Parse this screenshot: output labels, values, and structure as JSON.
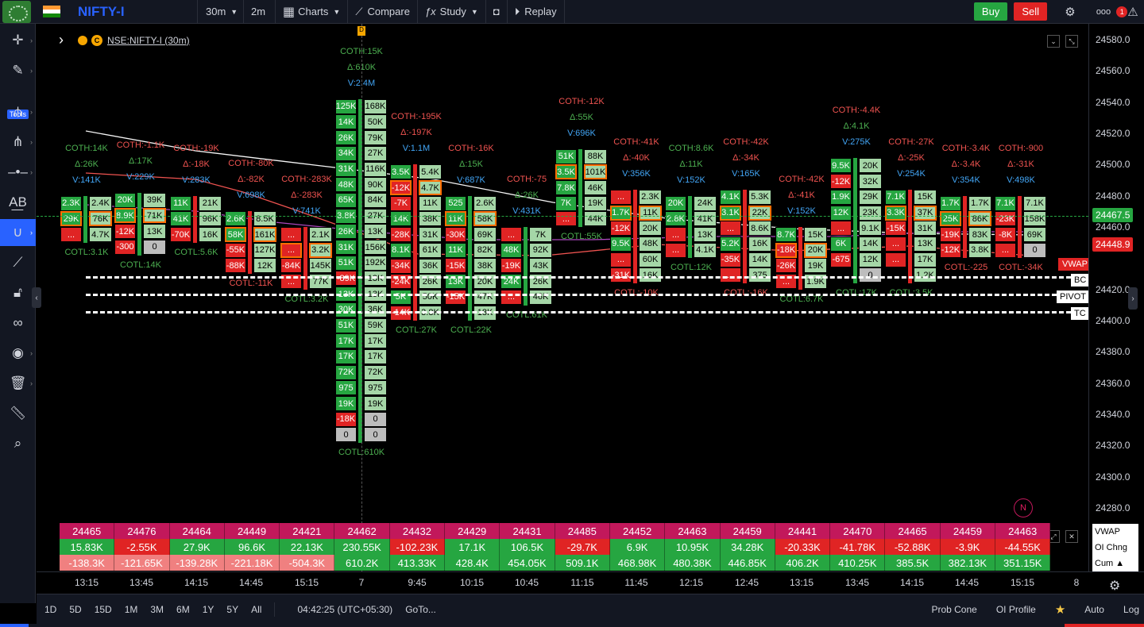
{
  "topbar": {
    "symbol": "NIFTY-I",
    "interval": "30m",
    "interval2": "2m",
    "charts_label": "Charts",
    "compare_label": "Compare",
    "study_label": "Study",
    "replay_label": "Replay",
    "buy_label": "Buy",
    "sell_label": "Sell",
    "more_label": "ooo",
    "alert_count": "1",
    "colors": {
      "buy": "#26a641",
      "sell": "#e02424",
      "symbol": "#2962ff"
    }
  },
  "leftbar": {
    "tools_label": "Tools"
  },
  "legend": {
    "symbol_text": "NSE:NIFTY-I (30m)",
    "coin_label": "C",
    "marker": "D"
  },
  "chart_data": {
    "type": "table",
    "price_axis": [
      "24580.0",
      "24560.0",
      "24540.0",
      "24520.0",
      "24500.0",
      "24480.0",
      "24460.0",
      "24420.0",
      "24400.0",
      "24380.0",
      "24360.0",
      "24340.0",
      "24320.0",
      "24300.0",
      "24280.0"
    ],
    "price_tags": {
      "last": "24467.5",
      "vwap": "24448.9"
    },
    "time_axis": [
      "13:15",
      "13:45",
      "14:15",
      "14:45",
      "15:15",
      "7",
      "9:45",
      "10:15",
      "10:45",
      "11:15",
      "11:45",
      "12:15",
      "12:45",
      "13:15",
      "13:45",
      "14:15",
      "14:45",
      "15:15",
      "8"
    ],
    "pivot_labels": {
      "vwap": "VWAP",
      "bc": "BC",
      "pivot": "PIVOT",
      "tc": "TC"
    },
    "top_annotations": [
      {
        "c": "COTH:14K",
        "d": "Δ:26K",
        "v": "V:141K"
      },
      {
        "c": "COTH:-1.1K",
        "d": "Δ:17K",
        "v": "V:229K"
      },
      {
        "c": "COTH:-19K",
        "d": "Δ:-18K",
        "v": "V:283K"
      },
      {
        "c": "COTH:-80K",
        "d": "Δ:-82K",
        "v": "V:698K"
      },
      {
        "c": "COTH:-283K",
        "d": "Δ:-283K",
        "v": "V:741K"
      },
      {
        "c": "COTH:15K",
        "d": "Δ:610K",
        "v": "V:2.4M"
      },
      {
        "c": "COTH:-195K",
        "d": "Δ:-197K",
        "v": "V:1.1M"
      },
      {
        "c": "COTH:-16K",
        "d": "Δ:15K",
        "v": "V:687K"
      },
      {
        "c": "COTH:-75",
        "d": "Δ:26K",
        "v": "V:431K"
      },
      {
        "c": "COTH:-12K",
        "d": "Δ:55K",
        "v": "V:696K"
      },
      {
        "c": "COTH:-41K",
        "d": "Δ:-40K",
        "v": "V:356K"
      },
      {
        "c": "COTH:8.6K",
        "d": "Δ:11K",
        "v": "V:152K"
      },
      {
        "c": "COTH:-42K",
        "d": "Δ:-34K",
        "v": "V:165K"
      },
      {
        "c": "COTH:-42K",
        "d": "Δ:-41K",
        "v": "V:152K"
      },
      {
        "c": "COTH:-4.4K",
        "d": "Δ:4.1K",
        "v": "V:275K"
      },
      {
        "c": "COTH:-27K",
        "d": "Δ:-25K",
        "v": "V:254K"
      },
      {
        "c": "COTH:-3.4K",
        "d": "Δ:-3.4K",
        "v": "V:354K"
      },
      {
        "c": "COTH:-900",
        "d": "Δ:-31K",
        "v": "V:498K"
      }
    ],
    "bottom_annotations": [
      "COTL:3.1K",
      "COTL:14K",
      "COTL:5.6K",
      "COTL:-11K",
      "COTL:3.2K",
      "COTL:610K",
      "COTL:27K",
      "COTL:22K",
      "COTL:61K",
      "COTL:55K",
      "COTL:-10K",
      "COTL:12K",
      "COTL:-16K",
      "COTL:6.7K",
      "COTL:17K",
      "COTL:3.5K",
      "COTL:-225",
      "COTL:-34K"
    ],
    "summary_rows": {
      "vwap": [
        "24465",
        "24476",
        "24464",
        "24449",
        "24421",
        "24462",
        "24432",
        "24429",
        "24431",
        "24485",
        "24452",
        "24463",
        "24459",
        "24441",
        "24470",
        "24465",
        "24459",
        "24463"
      ],
      "oi_change": [
        "15.83K",
        "-2.55K",
        "27.9K",
        "96.6K",
        "22.13K",
        "230.55K",
        "-102.23K",
        "17.1K",
        "106.5K",
        "-29.7K",
        "6.9K",
        "10.95K",
        "34.28K",
        "-20.33K",
        "-41.78K",
        "-52.88K",
        "-3.9K",
        "-44.55K"
      ],
      "cumulative": [
        "-138.3K",
        "-121.65K",
        "-139.28K",
        "-221.18K",
        "-504.3K",
        "610.2K",
        "413.33K",
        "428.4K",
        "454.05K",
        "509.1K",
        "468.98K",
        "480.38K",
        "446.85K",
        "406.2K",
        "410.25K",
        "385.5K",
        "382.13K",
        "351.15K"
      ]
    },
    "summary_labels": {
      "vwap": "VWAP",
      "oi": "OI Chng",
      "cum": "Cum ▲"
    }
  },
  "footprint": [
    {
      "l": [
        "2.3K",
        "29K",
        "..."
      ],
      "r": [
        "2.4K",
        "76K",
        "4.7K"
      ]
    },
    {
      "l": [
        "20K",
        "8.9K",
        "-12K",
        "-300"
      ],
      "r": [
        "39K",
        "71K",
        "13K",
        "0"
      ]
    },
    {
      "l": [
        "11K",
        "41K",
        "-70K"
      ],
      "r": [
        "21K",
        "96K",
        "16K"
      ]
    },
    {
      "l": [
        "2.6K",
        "58K",
        "-55K",
        "-88K"
      ],
      "r": [
        "8.5K",
        "161K",
        "127K",
        "12K"
      ]
    },
    {
      "l": [
        "...",
        "...",
        "-84K",
        "..."
      ],
      "r": [
        "2.1K",
        "3.2K",
        "145K",
        "77K"
      ]
    },
    {
      "l": [
        "125K",
        "14K",
        "26K",
        "34K",
        "31K",
        "48K",
        "65K",
        "3.8K",
        "26K",
        "31K",
        "51K",
        "-89K",
        "13K",
        "30K",
        "51K",
        "17K",
        "17K",
        "72K",
        "975",
        "19K",
        "-18K",
        "0"
      ],
      "r": [
        "168K",
        "50K",
        "79K",
        "27K",
        "116K",
        "90K",
        "84K",
        "27K",
        "13K",
        "156K",
        "192K",
        "13K",
        "13K",
        "36K",
        "59K",
        "17K",
        "17K",
        "72K",
        "975",
        "19K",
        "0",
        "0"
      ]
    },
    {
      "l": [
        "3.5K",
        "-12K",
        "-7K",
        "14K",
        "-28K",
        "8.1K",
        "-34K",
        "-24K",
        "5K",
        "-14K"
      ],
      "r": [
        "5.4K",
        "4.7K",
        "11K",
        "38K",
        "31K",
        "61K",
        "36K",
        "26K",
        "50K",
        "3.8K"
      ]
    },
    {
      "l": [
        "525",
        "11K",
        "-30K",
        "11K",
        "-15K",
        "13K",
        "-15K"
      ],
      "r": [
        "2.6K",
        "58K",
        "69K",
        "82K",
        "38K",
        "20K",
        "47K",
        "18K"
      ]
    },
    {
      "l": [
        "...",
        "48K",
        "-19K",
        "24K",
        "..."
      ],
      "r": [
        "7K",
        "92K",
        "43K",
        "26K",
        "46K"
      ]
    },
    {
      "l": [
        "51K",
        "3.5K",
        "7.8K",
        "7K",
        "..."
      ],
      "r": [
        "88K",
        "101K",
        "46K",
        "19K",
        "44K"
      ]
    },
    {
      "l": [
        "...",
        "1.7K",
        "-12K",
        "9.5K",
        "...",
        "-31K"
      ],
      "r": [
        "2.3K",
        "11K",
        "20K",
        "48K",
        "60K",
        "16K"
      ]
    },
    {
      "l": [
        "20K",
        "2.8K",
        "...",
        "..."
      ],
      "r": [
        "24K",
        "41K",
        "13K",
        "4.1K"
      ]
    },
    {
      "l": [
        "4.1K",
        "3.1K",
        "...",
        "5.2K",
        "-35K",
        "..."
      ],
      "r": [
        "5.3K",
        "22K",
        "8.6K",
        "16K",
        "14K",
        "375"
      ]
    },
    {
      "l": [
        "8.7K",
        "-18K",
        "-26K",
        "..."
      ],
      "r": [
        "15K",
        "20K",
        "19K",
        "1.9K"
      ]
    },
    {
      "l": [
        "9.5K",
        "-12K",
        "1.9K",
        "12K",
        "...",
        "6K",
        "-675"
      ],
      "r": [
        "20K",
        "32K",
        "29K",
        "23K",
        "9.1K",
        "14K",
        "12K",
        "0"
      ]
    },
    {
      "l": [
        "7.1K",
        "3.3K",
        "-15K",
        "...",
        "..."
      ],
      "r": [
        "15K",
        "37K",
        "31K",
        "13K",
        "17K",
        "1.2K"
      ]
    },
    {
      "l": [
        "1.7K",
        "25K",
        "-19K",
        "-12K"
      ],
      "r": [
        "1.7K",
        "86K",
        "83K",
        "3.8K"
      ]
    },
    {
      "l": [
        "7.1K",
        "-23K",
        "-8K",
        "..."
      ],
      "r": [
        "7.1K",
        "158K",
        "69K",
        "0"
      ]
    }
  ],
  "bottombar": {
    "ranges": [
      "1D",
      "5D",
      "15D",
      "1M",
      "3M",
      "6M",
      "1Y",
      "5Y",
      "All"
    ],
    "clock": "04:42:25 (UTC+05:30)",
    "goto": "GoTo...",
    "prob_cone": "Prob Cone",
    "oi_profile": "OI Profile",
    "auto": "Auto",
    "log": "Log"
  },
  "badge_n": "N"
}
